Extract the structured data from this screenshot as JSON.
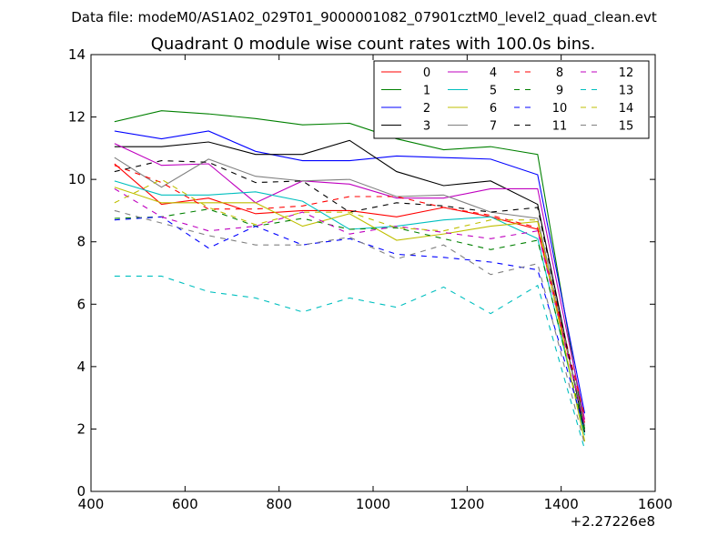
{
  "suptitle": "Data file: modeM0/AS1A02_029T01_9000001082_07901cztM0_level2_quad_clean.evt",
  "chart_data": {
    "type": "line",
    "title": "Quadrant 0 module wise count rates with 100.0s bins.",
    "xlabel": "",
    "ylabel": "",
    "x_offset_label": "+2.27226e8",
    "xlim": [
      400,
      1600
    ],
    "ylim": [
      0,
      14
    ],
    "xticks": [
      400,
      600,
      800,
      1000,
      1200,
      1400,
      1600
    ],
    "yticks": [
      0,
      2,
      4,
      6,
      8,
      10,
      12,
      14
    ],
    "grid": false,
    "legend_position": "top-right",
    "legend_columns": 4,
    "x": [
      450,
      550,
      650,
      750,
      850,
      950,
      1050,
      1150,
      1250,
      1350,
      1450
    ],
    "series": [
      {
        "name": "0",
        "color": "#ff0000",
        "dash": "solid",
        "values": [
          10.5,
          9.2,
          9.4,
          8.9,
          9.0,
          9.0,
          8.8,
          9.1,
          8.8,
          8.4,
          2.2
        ]
      },
      {
        "name": "1",
        "color": "#008000",
        "dash": "solid",
        "values": [
          11.85,
          12.2,
          12.1,
          11.95,
          11.75,
          11.8,
          11.3,
          10.95,
          11.05,
          10.8,
          2.0
        ]
      },
      {
        "name": "2",
        "color": "#0000ff",
        "dash": "solid",
        "values": [
          11.55,
          11.3,
          11.55,
          10.9,
          10.6,
          10.6,
          10.75,
          10.7,
          10.65,
          10.15,
          2.5
        ]
      },
      {
        "name": "3",
        "color": "#000000",
        "dash": "solid",
        "values": [
          11.05,
          11.05,
          11.2,
          10.8,
          10.8,
          11.25,
          10.25,
          9.8,
          9.95,
          9.2,
          1.9
        ]
      },
      {
        "name": "4",
        "color": "#bf00bf",
        "dash": "solid",
        "values": [
          11.15,
          10.45,
          10.5,
          9.25,
          9.95,
          9.85,
          9.4,
          9.4,
          9.7,
          9.7,
          2.3
        ]
      },
      {
        "name": "5",
        "color": "#00bfbf",
        "dash": "solid",
        "values": [
          9.95,
          9.5,
          9.5,
          9.6,
          9.3,
          8.4,
          8.5,
          8.7,
          8.8,
          8.1,
          1.8
        ]
      },
      {
        "name": "6",
        "color": "#bfbf00",
        "dash": "solid",
        "values": [
          9.75,
          9.25,
          9.25,
          9.25,
          8.5,
          8.9,
          8.05,
          8.25,
          8.5,
          8.65,
          1.6
        ]
      },
      {
        "name": "7",
        "color": "#808080",
        "dash": "solid",
        "values": [
          10.7,
          9.75,
          10.65,
          10.1,
          9.95,
          10.0,
          9.45,
          9.5,
          8.95,
          8.75,
          2.1
        ]
      },
      {
        "name": "8",
        "color": "#ff0000",
        "dash": "dashed",
        "values": [
          10.45,
          9.9,
          9.05,
          9.05,
          9.15,
          9.45,
          9.45,
          9.1,
          8.85,
          8.45,
          2.4
        ]
      },
      {
        "name": "9",
        "color": "#008000",
        "dash": "dashed",
        "values": [
          8.75,
          8.8,
          9.05,
          8.5,
          8.75,
          8.4,
          8.45,
          8.1,
          7.75,
          8.05,
          1.9
        ]
      },
      {
        "name": "10",
        "color": "#0000ff",
        "dash": "dashed",
        "values": [
          8.7,
          8.8,
          7.8,
          8.5,
          7.9,
          8.1,
          7.6,
          7.5,
          7.35,
          7.1,
          2.0
        ]
      },
      {
        "name": "11",
        "color": "#000000",
        "dash": "dashed",
        "values": [
          10.25,
          10.6,
          10.55,
          9.9,
          9.95,
          8.95,
          9.25,
          9.15,
          8.95,
          9.1,
          1.9
        ]
      },
      {
        "name": "12",
        "color": "#bf00bf",
        "dash": "dashed",
        "values": [
          9.7,
          8.8,
          8.35,
          8.5,
          8.95,
          8.25,
          8.5,
          8.3,
          8.1,
          8.35,
          2.1
        ]
      },
      {
        "name": "13",
        "color": "#00bfbf",
        "dash": "dashed",
        "values": [
          6.9,
          6.9,
          6.4,
          6.2,
          5.75,
          6.2,
          5.9,
          6.55,
          5.7,
          6.6,
          1.35
        ]
      },
      {
        "name": "14",
        "color": "#bfbf00",
        "dash": "dashed",
        "values": [
          9.25,
          10.0,
          9.1,
          8.55,
          8.95,
          8.95,
          8.45,
          8.35,
          8.7,
          8.7,
          1.6
        ]
      },
      {
        "name": "15",
        "color": "#808080",
        "dash": "dashed",
        "values": [
          9.0,
          8.6,
          8.2,
          7.9,
          7.9,
          8.15,
          7.45,
          7.9,
          6.95,
          7.3,
          1.5
        ]
      }
    ]
  }
}
